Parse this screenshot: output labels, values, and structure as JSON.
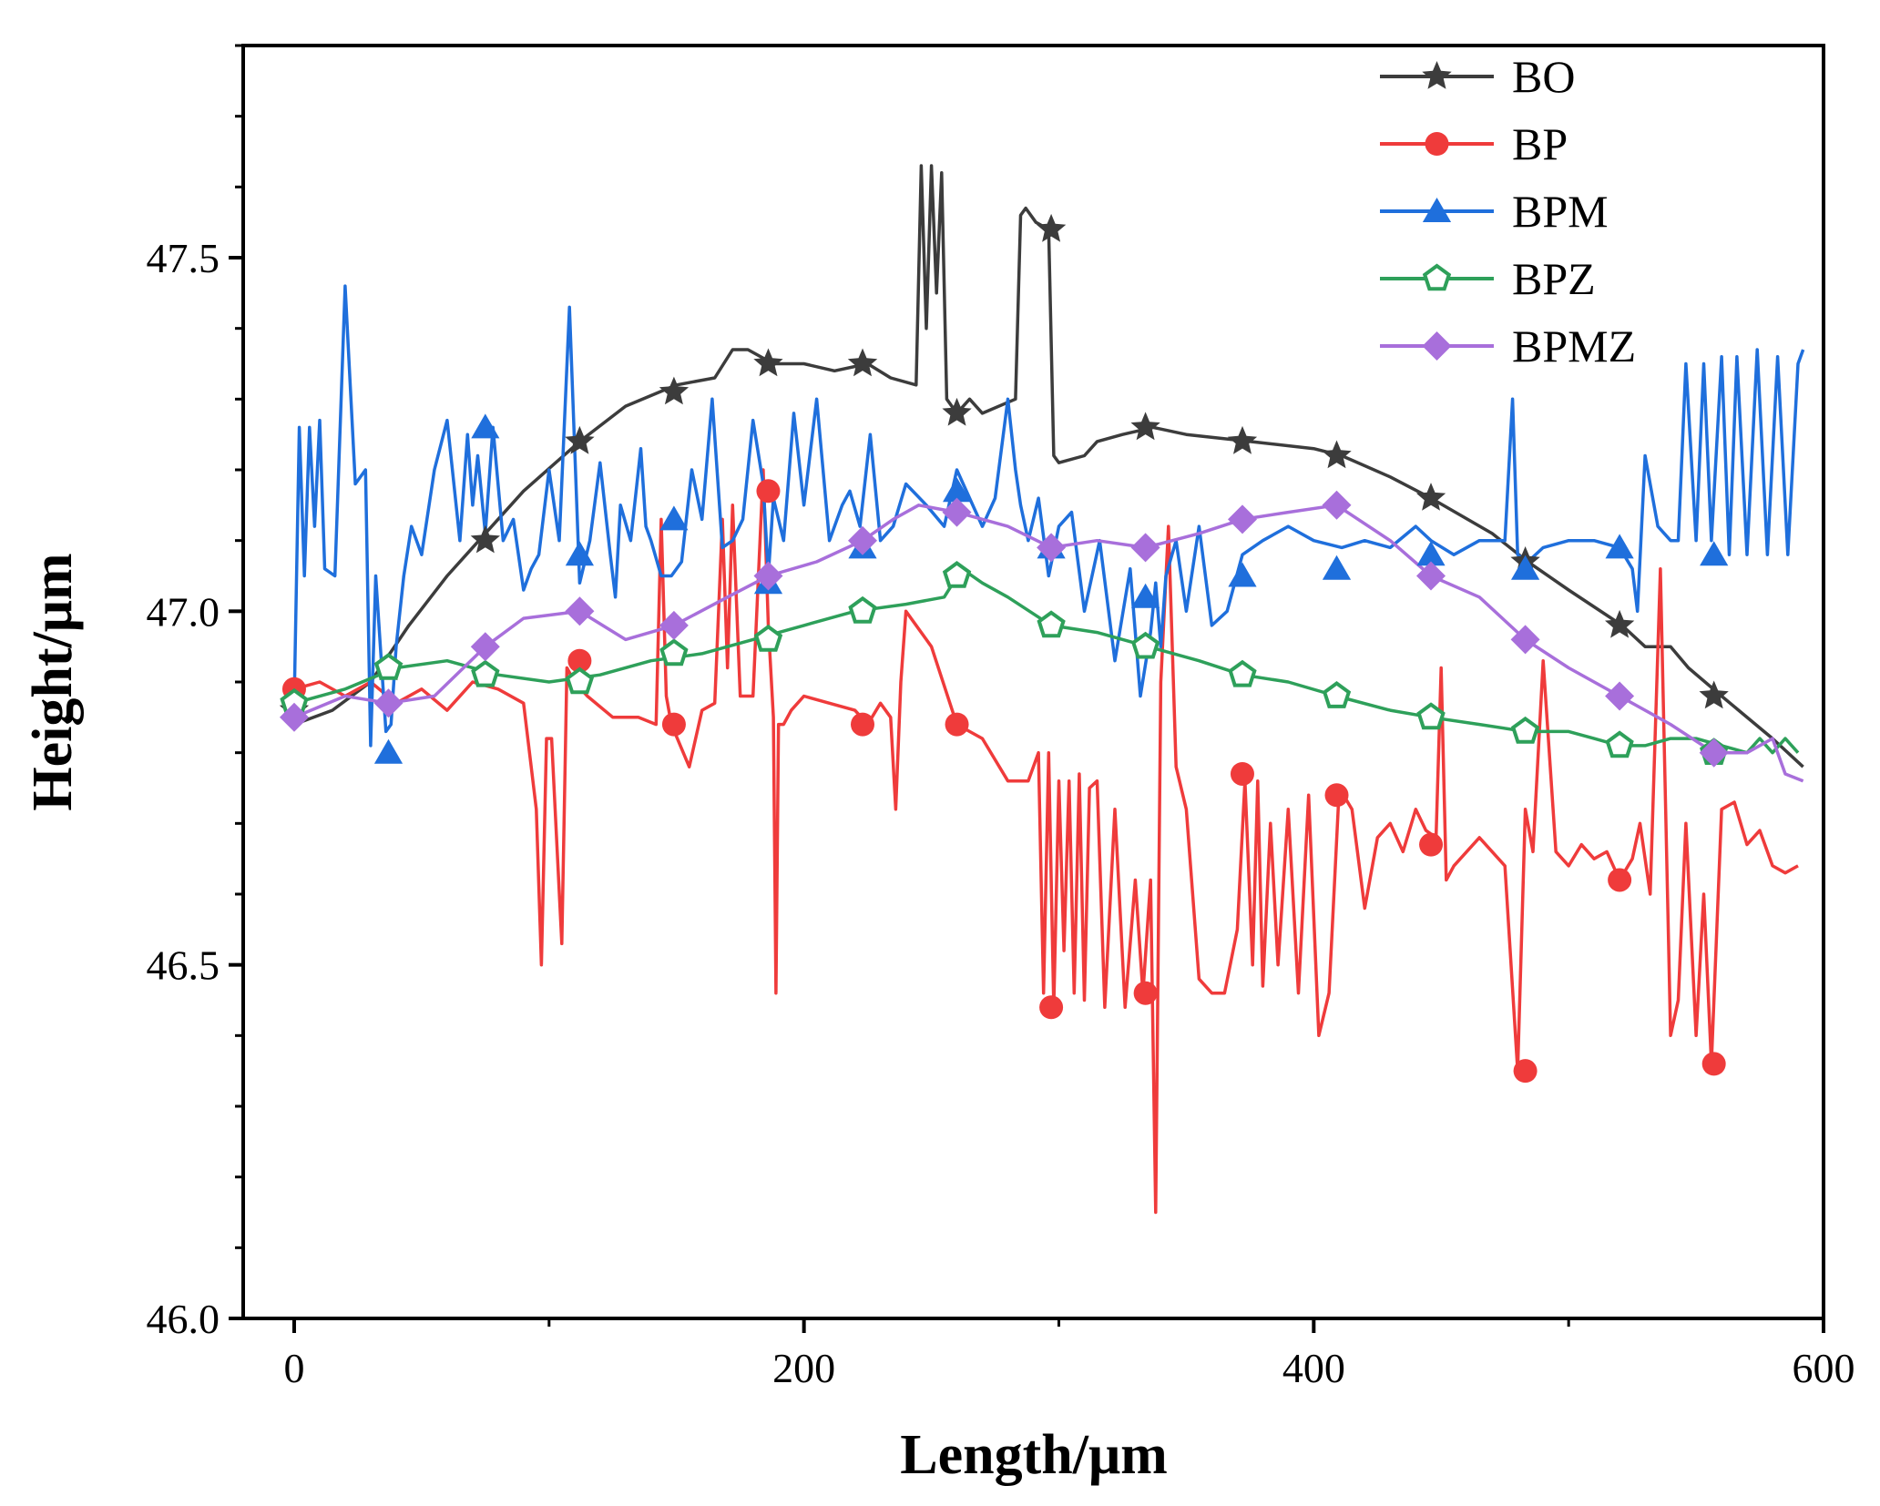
{
  "chart_data": {
    "type": "line",
    "title": "",
    "xlabel": "Length/μm",
    "ylabel": "Height/μm",
    "xlim": [
      -20,
      600
    ],
    "ylim": [
      46.0,
      47.8
    ],
    "xticks": [
      0,
      200,
      400,
      600
    ],
    "xtick_labels": [
      "0",
      "200",
      "400",
      "600"
    ],
    "yticks": [
      46.0,
      46.5,
      47.0,
      47.5
    ],
    "ytick_labels": [
      "46.0",
      "46.5",
      "47.0",
      "47.5"
    ],
    "legend_position": "top-right",
    "series": [
      {
        "name": "BO",
        "color": "#3c3c3c",
        "marker": "star",
        "x": [
          0,
          15,
          30,
          45,
          60,
          75,
          90,
          112,
          130,
          150,
          165,
          172,
          178,
          188,
          200,
          212,
          225,
          234,
          244,
          246,
          248,
          250,
          252,
          254,
          256,
          260,
          265,
          270,
          283,
          285,
          287,
          291,
          296,
          298,
          300,
          310,
          315,
          325,
          337,
          350,
          375,
          400,
          411,
          430,
          446,
          470,
          484,
          500,
          521,
          530,
          540,
          547,
          560,
          580,
          592
        ],
        "y": [
          46.84,
          46.86,
          46.9,
          46.98,
          47.05,
          47.11,
          47.17,
          47.24,
          47.29,
          47.32,
          47.33,
          47.37,
          47.37,
          47.35,
          47.35,
          47.34,
          47.35,
          47.33,
          47.32,
          47.63,
          47.4,
          47.63,
          47.45,
          47.62,
          47.3,
          47.28,
          47.3,
          47.28,
          47.3,
          47.56,
          47.57,
          47.55,
          47.54,
          47.22,
          47.21,
          47.22,
          47.24,
          47.25,
          47.26,
          47.25,
          47.24,
          47.23,
          47.22,
          47.19,
          47.16,
          47.11,
          47.07,
          47.03,
          46.98,
          46.95,
          46.95,
          46.92,
          46.88,
          46.82,
          46.78
        ],
        "markers_x": [
          0,
          37,
          75,
          112,
          149,
          186,
          223,
          260,
          297,
          334,
          372,
          409,
          446,
          483,
          520,
          557
        ],
        "markers_y": [
          46.86,
          46.92,
          47.1,
          47.24,
          47.31,
          47.35,
          47.35,
          47.28,
          47.54,
          47.26,
          47.24,
          47.22,
          47.16,
          47.07,
          46.98,
          46.88
        ]
      },
      {
        "name": "BP",
        "color": "#ef3b3b",
        "marker": "circle",
        "x": [
          0,
          10,
          20,
          30,
          40,
          50,
          60,
          70,
          80,
          90,
          95,
          97,
          99,
          101,
          105,
          107,
          110,
          115,
          125,
          135,
          142,
          144,
          146,
          148,
          155,
          160,
          165,
          168,
          170,
          172,
          175,
          180,
          184,
          186,
          188,
          189,
          190,
          192,
          195,
          200,
          210,
          220,
          225,
          230,
          234,
          236,
          238,
          240,
          250,
          260,
          270,
          280,
          288,
          292,
          294,
          296,
          298,
          300,
          302,
          304,
          306,
          308,
          310,
          312,
          315,
          318,
          322,
          326,
          330,
          333,
          336,
          338,
          340,
          343,
          346,
          350,
          355,
          360,
          365,
          370,
          373,
          376,
          378,
          380,
          383,
          386,
          390,
          394,
          398,
          402,
          406,
          410,
          415,
          420,
          425,
          430,
          435,
          440,
          444,
          448,
          450,
          452,
          455,
          460,
          465,
          470,
          475,
          480,
          483,
          486,
          490,
          495,
          500,
          505,
          510,
          515,
          520,
          525,
          528,
          532,
          536,
          540,
          543,
          546,
          550,
          553,
          556,
          560,
          565,
          570,
          575,
          580,
          585,
          590
        ],
        "y": [
          46.89,
          46.9,
          46.88,
          46.9,
          46.87,
          46.89,
          46.86,
          46.9,
          46.89,
          46.87,
          46.72,
          46.5,
          46.82,
          46.82,
          46.53,
          46.92,
          46.9,
          46.88,
          46.85,
          46.85,
          46.84,
          47.13,
          46.88,
          46.84,
          46.78,
          46.86,
          46.87,
          47.13,
          46.92,
          47.15,
          46.88,
          46.88,
          47.2,
          46.98,
          46.85,
          46.46,
          46.84,
          46.84,
          46.86,
          46.88,
          46.87,
          46.86,
          46.84,
          46.87,
          46.85,
          46.72,
          46.9,
          47.0,
          46.95,
          46.84,
          46.82,
          46.76,
          46.76,
          46.8,
          46.46,
          46.8,
          46.44,
          46.76,
          46.52,
          46.76,
          46.46,
          46.77,
          46.45,
          46.75,
          46.76,
          46.44,
          46.72,
          46.44,
          46.62,
          46.46,
          46.62,
          46.15,
          46.9,
          47.12,
          46.78,
          46.72,
          46.48,
          46.46,
          46.46,
          46.55,
          46.76,
          46.5,
          46.76,
          46.47,
          46.7,
          46.5,
          46.72,
          46.46,
          46.74,
          46.4,
          46.46,
          46.75,
          46.72,
          46.58,
          46.68,
          46.7,
          46.66,
          46.72,
          46.69,
          46.68,
          46.92,
          46.62,
          46.64,
          46.66,
          46.68,
          46.66,
          46.64,
          46.35,
          46.72,
          46.66,
          46.93,
          46.66,
          46.64,
          46.67,
          46.65,
          46.66,
          46.62,
          46.65,
          46.7,
          46.6,
          47.06,
          46.4,
          46.45,
          46.7,
          46.4,
          46.6,
          46.36,
          46.72,
          46.73,
          46.67,
          46.69,
          46.64,
          46.63,
          46.64
        ],
        "markers_x": [
          0,
          112,
          149,
          186,
          223,
          260,
          297,
          334,
          372,
          409,
          446,
          483,
          520,
          557
        ],
        "markers_y": [
          46.89,
          46.93,
          46.84,
          47.17,
          46.84,
          46.84,
          46.44,
          46.46,
          46.77,
          46.74,
          46.67,
          46.35,
          46.62,
          46.36
        ]
      },
      {
        "name": "BPM",
        "color": "#1f6fdc",
        "marker": "triangle",
        "x": [
          0,
          2,
          4,
          6,
          8,
          10,
          12,
          16,
          20,
          24,
          28,
          30,
          32,
          36,
          38,
          40,
          43,
          46,
          50,
          55,
          60,
          65,
          68,
          70,
          72,
          75,
          78,
          82,
          86,
          90,
          93,
          96,
          100,
          104,
          108,
          112,
          116,
          120,
          124,
          126,
          128,
          132,
          136,
          138,
          140,
          144,
          148,
          152,
          156,
          160,
          164,
          168,
          172,
          176,
          180,
          184,
          186,
          188,
          192,
          196,
          200,
          205,
          210,
          215,
          218,
          222,
          226,
          230,
          235,
          240,
          248,
          255,
          260,
          265,
          270,
          275,
          280,
          283,
          285,
          288,
          292,
          296,
          300,
          305,
          310,
          316,
          322,
          328,
          332,
          336,
          338,
          340,
          342,
          346,
          350,
          355,
          360,
          366,
          372,
          380,
          390,
          400,
          411,
          420,
          430,
          440,
          446,
          455,
          465,
          475,
          478,
          480,
          484,
          490,
          500,
          510,
          520,
          525,
          527,
          530,
          535,
          540,
          543,
          546,
          550,
          553,
          556,
          560,
          563,
          566,
          570,
          574,
          578,
          582,
          586,
          590,
          592
        ],
        "y": [
          46.87,
          47.26,
          47.05,
          47.26,
          47.12,
          47.27,
          47.06,
          47.05,
          47.46,
          47.18,
          47.2,
          46.81,
          47.05,
          46.83,
          46.84,
          46.95,
          47.05,
          47.12,
          47.08,
          47.2,
          47.27,
          47.1,
          47.25,
          47.15,
          47.22,
          47.11,
          47.26,
          47.1,
          47.13,
          47.03,
          47.06,
          47.08,
          47.2,
          47.1,
          47.43,
          47.04,
          47.1,
          47.21,
          47.08,
          47.02,
          47.15,
          47.1,
          47.23,
          47.12,
          47.1,
          47.05,
          47.05,
          47.07,
          47.2,
          47.13,
          47.3,
          47.09,
          47.1,
          47.13,
          47.27,
          47.18,
          47.05,
          47.16,
          47.1,
          47.28,
          47.15,
          47.3,
          47.1,
          47.15,
          47.17,
          47.12,
          47.25,
          47.1,
          47.12,
          47.18,
          47.15,
          47.12,
          47.2,
          47.16,
          47.12,
          47.16,
          47.3,
          47.2,
          47.15,
          47.1,
          47.16,
          47.05,
          47.12,
          47.14,
          47.0,
          47.1,
          46.93,
          47.06,
          46.88,
          46.97,
          47.04,
          46.95,
          47.05,
          47.1,
          47.0,
          47.12,
          46.98,
          47.0,
          47.08,
          47.1,
          47.12,
          47.1,
          47.09,
          47.1,
          47.09,
          47.12,
          47.1,
          47.08,
          47.1,
          47.1,
          47.3,
          47.08,
          47.07,
          47.09,
          47.1,
          47.1,
          47.09,
          47.06,
          47.0,
          47.22,
          47.12,
          47.1,
          47.1,
          47.35,
          47.1,
          47.35,
          47.1,
          47.36,
          47.08,
          47.36,
          47.08,
          47.37,
          47.08,
          47.36,
          47.08,
          47.35,
          47.37
        ],
        "markers_x": [
          37,
          75,
          112,
          149,
          186,
          223,
          260,
          297,
          334,
          372,
          409,
          446,
          483,
          520,
          557
        ],
        "markers_y": [
          46.8,
          47.26,
          47.08,
          47.13,
          47.04,
          47.09,
          47.17,
          47.09,
          47.02,
          47.05,
          47.06,
          47.08,
          47.06,
          47.09,
          47.08
        ]
      },
      {
        "name": "BPZ",
        "color": "#2ea05a",
        "marker": "pentagon",
        "x": [
          0,
          20,
          40,
          60,
          80,
          100,
          120,
          140,
          160,
          180,
          200,
          220,
          240,
          255,
          262,
          270,
          280,
          297,
          315,
          335,
          355,
          372,
          390,
          409,
          430,
          446,
          465,
          483,
          500,
          510,
          520,
          530,
          540,
          550,
          560,
          570,
          575,
          580,
          585,
          590
        ],
        "y": [
          46.87,
          46.89,
          46.92,
          46.93,
          46.91,
          46.9,
          46.91,
          46.93,
          46.94,
          46.96,
          46.98,
          47.0,
          47.01,
          47.02,
          47.06,
          47.04,
          47.02,
          46.98,
          46.97,
          46.95,
          46.93,
          46.91,
          46.9,
          46.88,
          46.86,
          46.85,
          46.84,
          46.83,
          46.83,
          46.82,
          46.81,
          46.81,
          46.82,
          46.82,
          46.81,
          46.8,
          46.82,
          46.8,
          46.82,
          46.8
        ],
        "markers_x": [
          0,
          37,
          75,
          112,
          149,
          186,
          223,
          260,
          297,
          334,
          372,
          409,
          446,
          483,
          520,
          557
        ],
        "markers_y": [
          46.87,
          46.92,
          46.91,
          46.9,
          46.94,
          46.96,
          47.0,
          47.05,
          46.98,
          46.95,
          46.91,
          46.88,
          46.85,
          46.83,
          46.81,
          46.8
        ]
      },
      {
        "name": "BPMZ",
        "color": "#a86fdb",
        "marker": "diamond",
        "x": [
          0,
          20,
          37,
          55,
          75,
          90,
          112,
          130,
          149,
          170,
          186,
          205,
          223,
          235,
          245,
          260,
          280,
          297,
          315,
          334,
          355,
          372,
          390,
          409,
          430,
          446,
          465,
          483,
          500,
          520,
          540,
          557,
          570,
          580,
          585,
          592
        ],
        "y": [
          46.85,
          46.88,
          46.87,
          46.88,
          46.95,
          46.99,
          47.0,
          46.96,
          46.98,
          47.02,
          47.05,
          47.07,
          47.1,
          47.13,
          47.15,
          47.14,
          47.12,
          47.09,
          47.1,
          47.09,
          47.11,
          47.13,
          47.14,
          47.15,
          47.1,
          47.05,
          47.02,
          46.96,
          46.92,
          46.88,
          46.84,
          46.8,
          46.8,
          46.82,
          46.77,
          46.76
        ],
        "markers_x": [
          0,
          37,
          75,
          112,
          149,
          186,
          223,
          260,
          297,
          334,
          372,
          409,
          446,
          483,
          520,
          557
        ],
        "markers_y": [
          46.85,
          46.87,
          46.95,
          47.0,
          46.98,
          47.05,
          47.1,
          47.14,
          47.09,
          47.09,
          47.13,
          47.15,
          47.05,
          46.96,
          46.88,
          46.8
        ]
      }
    ]
  }
}
